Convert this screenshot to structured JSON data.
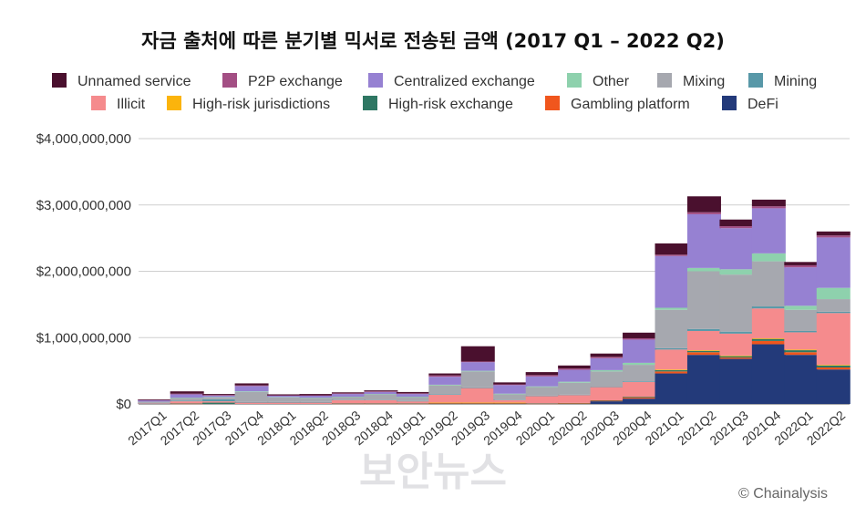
{
  "chart_data": {
    "type": "bar",
    "stacked": true,
    "title": "자금 출처에 따른 분기별 믹서로 전송된 금액 (2017 Q1 – 2022 Q2)",
    "categories": [
      "2017Q1",
      "2017Q2",
      "2017Q3",
      "2017Q4",
      "2018Q1",
      "2018Q2",
      "2018Q3",
      "2018Q4",
      "2019Q1",
      "2019Q2",
      "2019Q3",
      "2019Q4",
      "2020Q1",
      "2020Q2",
      "2020Q3",
      "2020Q4",
      "2021Q1",
      "2021Q2",
      "2021Q3",
      "2021Q4",
      "2022Q1",
      "2022Q2"
    ],
    "y_ticks": [
      "$0",
      "$1,000,000,000",
      "$2,000,000,000",
      "$3,000,000,000",
      "$4,000,000,000"
    ],
    "ylim": [
      0,
      4000000000
    ],
    "grid": true,
    "legend_position": "top",
    "series": [
      {
        "name": "DeFi",
        "color": "#233a7a",
        "values": [
          0,
          0,
          0,
          0,
          0,
          0,
          0,
          0,
          0,
          0,
          0,
          0,
          0,
          0,
          40000000,
          80000000,
          460000000,
          740000000,
          680000000,
          900000000,
          740000000,
          520000000
        ]
      },
      {
        "name": "Gambling platform",
        "color": "#f0561d",
        "values": [
          0,
          5000000,
          0,
          0,
          0,
          0,
          5000000,
          5000000,
          5000000,
          10000000,
          10000000,
          10000000,
          5000000,
          10000000,
          10000000,
          20000000,
          30000000,
          40000000,
          20000000,
          50000000,
          40000000,
          30000000
        ]
      },
      {
        "name": "High-risk exchange",
        "color": "#2e7763",
        "values": [
          0,
          5000000,
          20000000,
          0,
          0,
          0,
          5000000,
          5000000,
          5000000,
          5000000,
          5000000,
          5000000,
          5000000,
          5000000,
          5000000,
          10000000,
          20000000,
          20000000,
          20000000,
          30000000,
          30000000,
          30000000
        ]
      },
      {
        "name": "High-risk jurisdictions",
        "color": "#fbb40c",
        "values": [
          0,
          0,
          0,
          0,
          0,
          0,
          0,
          0,
          0,
          5000000,
          5000000,
          5000000,
          0,
          0,
          0,
          0,
          10000000,
          10000000,
          10000000,
          10000000,
          10000000,
          10000000
        ]
      },
      {
        "name": "Illicit",
        "color": "#f58b8d",
        "values": [
          10000000,
          30000000,
          20000000,
          20000000,
          20000000,
          20000000,
          50000000,
          50000000,
          30000000,
          120000000,
          220000000,
          40000000,
          110000000,
          120000000,
          200000000,
          220000000,
          300000000,
          290000000,
          330000000,
          450000000,
          260000000,
          780000000
        ]
      },
      {
        "name": "Mining",
        "color": "#5898a8",
        "values": [
          5000000,
          10000000,
          30000000,
          10000000,
          10000000,
          10000000,
          5000000,
          5000000,
          5000000,
          10000000,
          10000000,
          5000000,
          5000000,
          5000000,
          5000000,
          10000000,
          20000000,
          30000000,
          30000000,
          30000000,
          20000000,
          20000000
        ]
      },
      {
        "name": "Mixing",
        "color": "#a6a8af",
        "values": [
          20000000,
          40000000,
          30000000,
          150000000,
          70000000,
          60000000,
          40000000,
          80000000,
          60000000,
          130000000,
          240000000,
          80000000,
          130000000,
          180000000,
          230000000,
          250000000,
          580000000,
          870000000,
          860000000,
          680000000,
          320000000,
          190000000
        ]
      },
      {
        "name": "Other",
        "color": "#8ed1ad",
        "values": [
          0,
          5000000,
          5000000,
          10000000,
          5000000,
          5000000,
          5000000,
          5000000,
          5000000,
          10000000,
          10000000,
          10000000,
          10000000,
          15000000,
          20000000,
          30000000,
          30000000,
          50000000,
          80000000,
          120000000,
          60000000,
          170000000
        ]
      },
      {
        "name": "Centralized exchange",
        "color": "#9681d2",
        "values": [
          20000000,
          50000000,
          20000000,
          80000000,
          20000000,
          30000000,
          40000000,
          30000000,
          40000000,
          120000000,
          130000000,
          130000000,
          150000000,
          180000000,
          180000000,
          350000000,
          780000000,
          810000000,
          620000000,
          680000000,
          580000000,
          760000000
        ]
      },
      {
        "name": "P2P exchange",
        "color": "#a34f84",
        "values": [
          5000000,
          10000000,
          10000000,
          10000000,
          5000000,
          5000000,
          10000000,
          10000000,
          10000000,
          20000000,
          10000000,
          10000000,
          20000000,
          20000000,
          20000000,
          20000000,
          20000000,
          30000000,
          30000000,
          30000000,
          30000000,
          30000000
        ]
      },
      {
        "name": "Unnamed service",
        "color": "#4a102e",
        "values": [
          10000000,
          35000000,
          15000000,
          30000000,
          15000000,
          20000000,
          15000000,
          15000000,
          20000000,
          30000000,
          230000000,
          30000000,
          45000000,
          45000000,
          50000000,
          85000000,
          170000000,
          240000000,
          100000000,
          100000000,
          50000000,
          60000000
        ]
      }
    ],
    "legend_rows": [
      [
        "Unnamed service",
        "P2P exchange",
        "Centralized exchange",
        "Other",
        "Mixing",
        "Mining"
      ],
      [
        "Illicit",
        "High-risk jurisdictions",
        "High-risk exchange",
        "Gambling platform",
        "DeFi"
      ]
    ]
  },
  "credit": "© Chainalysis",
  "watermark": "보안뉴스"
}
